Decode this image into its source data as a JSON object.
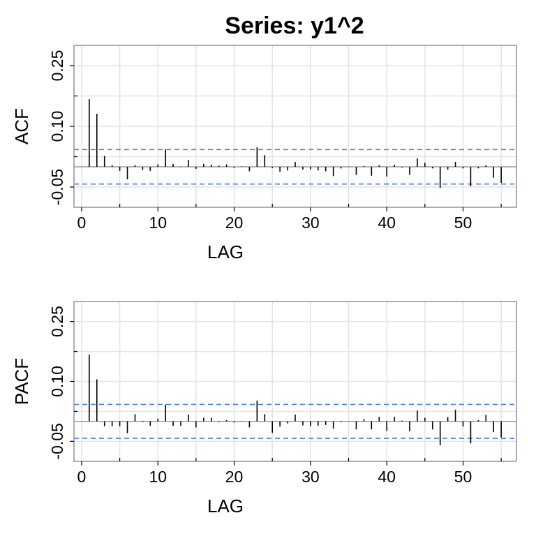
{
  "title": "Series:  y1^2",
  "colors": {
    "grid": "#e3e3e3",
    "frame": "#9a9a9a",
    "bars": "#000000",
    "confidence": "#4a7fd0",
    "zero_line": "#9a9a9a"
  },
  "chart_data": [
    {
      "type": "bar",
      "ylabel": "ACF",
      "xlabel": "LAG",
      "xlim": [
        -1,
        57
      ],
      "ylim": [
        -0.1,
        0.3
      ],
      "xticks": [
        0,
        10,
        20,
        30,
        40,
        50
      ],
      "xtick_labels": [
        "0",
        "10",
        "20",
        "30",
        "40",
        "50"
      ],
      "xminor": [
        5,
        15,
        25,
        35,
        45,
        55
      ],
      "yticks": [
        -0.05,
        0.1,
        0.25
      ],
      "ytick_labels": [
        "-0.05",
        "0.10",
        "0.25"
      ],
      "yminor": [
        0.025,
        0.175
      ],
      "confidence_band": [
        -0.0425,
        0.0425
      ],
      "grid": true,
      "lags": [
        1,
        2,
        3,
        4,
        5,
        6,
        7,
        8,
        9,
        10,
        11,
        12,
        13,
        14,
        15,
        16,
        17,
        18,
        19,
        20,
        21,
        22,
        23,
        24,
        25,
        26,
        27,
        28,
        29,
        30,
        31,
        32,
        33,
        34,
        35,
        36,
        37,
        38,
        39,
        40,
        41,
        42,
        43,
        44,
        45,
        46,
        47,
        48,
        49,
        50,
        51,
        52,
        53,
        54,
        55
      ],
      "values": [
        0.167,
        0.131,
        0.027,
        0.004,
        -0.01,
        -0.031,
        0.004,
        -0.008,
        -0.01,
        0.006,
        0.043,
        0.007,
        -0.001,
        0.017,
        -0.005,
        0.007,
        0.005,
        0.003,
        0.006,
        -0.003,
        0.001,
        -0.011,
        0.048,
        0.029,
        -0.003,
        -0.012,
        -0.009,
        0.012,
        -0.007,
        -0.006,
        -0.009,
        -0.011,
        -0.023,
        -0.004,
        -0.001,
        -0.02,
        0.002,
        -0.022,
        0.004,
        -0.024,
        0.005,
        -0.002,
        -0.02,
        0.021,
        0.01,
        -0.004,
        -0.052,
        -0.007,
        0.012,
        -0.004,
        -0.048,
        -0.004,
        0.004,
        -0.027,
        -0.04
      ]
    },
    {
      "type": "bar",
      "ylabel": "PACF",
      "xlabel": "LAG",
      "xlim": [
        -1,
        57
      ],
      "ylim": [
        -0.1,
        0.3
      ],
      "xticks": [
        0,
        10,
        20,
        30,
        40,
        50
      ],
      "xtick_labels": [
        "0",
        "10",
        "20",
        "30",
        "40",
        "50"
      ],
      "xminor": [
        5,
        15,
        25,
        35,
        45,
        55
      ],
      "yticks": [
        -0.05,
        0.1,
        0.25
      ],
      "ytick_labels": [
        "-0.05",
        "0.10",
        "0.25"
      ],
      "yminor": [
        0.025,
        0.175
      ],
      "confidence_band": [
        -0.0425,
        0.0425
      ],
      "grid": true,
      "lags": [
        1,
        2,
        3,
        4,
        5,
        6,
        7,
        8,
        9,
        10,
        11,
        12,
        13,
        14,
        15,
        16,
        17,
        18,
        19,
        20,
        21,
        22,
        23,
        24,
        25,
        26,
        27,
        28,
        29,
        30,
        31,
        32,
        33,
        34,
        35,
        36,
        37,
        38,
        39,
        40,
        41,
        42,
        43,
        44,
        45,
        46,
        47,
        48,
        49,
        50,
        51,
        52,
        53,
        54,
        55
      ],
      "values": [
        0.167,
        0.105,
        -0.012,
        -0.012,
        -0.012,
        -0.03,
        0.018,
        -0.002,
        -0.011,
        0.007,
        0.042,
        -0.011,
        -0.011,
        0.017,
        -0.015,
        0.009,
        0.009,
        -0.002,
        0.003,
        -0.003,
        0.001,
        -0.015,
        0.052,
        0.018,
        -0.029,
        -0.013,
        -0.005,
        0.017,
        -0.01,
        -0.012,
        -0.011,
        -0.009,
        -0.018,
        -0.002,
        -0.001,
        -0.02,
        0.005,
        -0.02,
        0.011,
        -0.024,
        0.011,
        0.002,
        -0.025,
        0.027,
        0.009,
        -0.02,
        -0.06,
        0.011,
        0.029,
        -0.013,
        -0.055,
        0.003,
        0.016,
        -0.027,
        -0.04
      ]
    }
  ]
}
